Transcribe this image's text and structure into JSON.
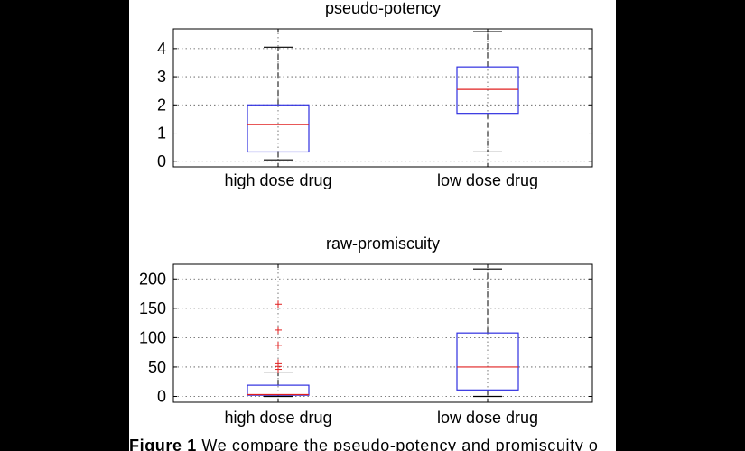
{
  "colors": {
    "box": "#3030e0",
    "median": "#e02020",
    "outlier": "#e02020",
    "whisker": "#000000",
    "grid": "#555555"
  },
  "chart_data": [
    {
      "type": "box",
      "title": "pseudo-potency",
      "categories": [
        "high dose drug",
        "low dose drug"
      ],
      "yticks": [
        0,
        1,
        2,
        3,
        4
      ],
      "ylim": [
        -0.2,
        4.7
      ],
      "grid": true,
      "boxes": [
        {
          "label": "high dose drug",
          "whisker_low": 0.05,
          "q1": 0.33,
          "median": 1.3,
          "q3": 2.0,
          "whisker_high": 4.05,
          "outliers": []
        },
        {
          "label": "low dose drug",
          "whisker_low": 0.33,
          "q1": 1.7,
          "median": 2.55,
          "q3": 3.35,
          "whisker_high": 4.6,
          "outliers": []
        }
      ]
    },
    {
      "type": "box",
      "title": "raw-promiscuity",
      "categories": [
        "high dose drug",
        "low dose drug"
      ],
      "yticks": [
        0,
        50,
        100,
        150,
        200
      ],
      "ylim": [
        -10,
        225
      ],
      "grid": true,
      "boxes": [
        {
          "label": "high dose drug",
          "whisker_low": 0,
          "q1": 2,
          "median": 3,
          "q3": 19,
          "whisker_high": 40,
          "outliers": [
            46,
            51,
            57,
            87,
            113,
            157
          ]
        },
        {
          "label": "low dose drug",
          "whisker_low": 0,
          "q1": 11,
          "median": 50,
          "q3": 108,
          "whisker_high": 217,
          "outliers": []
        }
      ]
    }
  ],
  "caption": {
    "label": "Figure 1",
    "text": " We compare the pseudo-potency and promiscuity o"
  }
}
